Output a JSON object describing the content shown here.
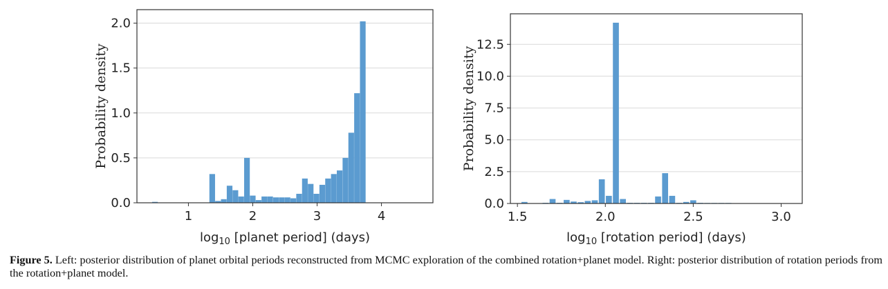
{
  "chart_data": [
    {
      "type": "bar",
      "xlabel_prefix": "log",
      "xlabel_sub": "10",
      "xlabel_rest": " [planet period] (days)",
      "ylabel": "Probability density",
      "xlim": [
        0.2,
        4.8
      ],
      "ylim": [
        0,
        2.15
      ],
      "xticks": [
        1,
        2,
        3,
        4
      ],
      "yticks": [
        0.0,
        0.5,
        1.0,
        1.5,
        2.0
      ],
      "ytick_labels": [
        "0.0",
        "0.5",
        "1.0",
        "1.5",
        "2.0"
      ],
      "xtick_labels": [
        "1",
        "2",
        "3",
        "4"
      ],
      "bar_width": 0.088,
      "grid": "horizontal",
      "color": "#5b9bd0",
      "x": [
        0.48,
        1.28,
        1.37,
        1.46,
        1.55,
        1.64,
        1.73,
        1.82,
        1.91,
        2.0,
        2.09,
        2.18,
        2.27,
        2.36,
        2.45,
        2.54,
        2.63,
        2.72,
        2.81,
        2.9,
        2.99,
        3.08,
        3.17,
        3.26,
        3.35,
        3.44,
        3.53,
        3.62,
        3.71,
        3.8,
        3.89,
        3.98,
        4.07,
        4.16,
        4.25,
        4.34,
        4.43,
        4.52
      ],
      "values": [
        0.01,
        0.0,
        0.32,
        0.02,
        0.04,
        0.19,
        0.14,
        0.07,
        0.5,
        0.08,
        0.03,
        0.07,
        0.07,
        0.06,
        0.06,
        0.06,
        0.05,
        0.1,
        0.27,
        0.21,
        0.1,
        0.2,
        0.27,
        0.32,
        0.36,
        0.5,
        0.78,
        1.22,
        2.02,
        0,
        0,
        0,
        0,
        0,
        0,
        0,
        0,
        0
      ]
    },
    {
      "type": "bar",
      "xlabel_prefix": "log",
      "xlabel_sub": "10",
      "xlabel_rest": " [rotation period] (days)",
      "ylabel": "Probability density",
      "xlim": [
        1.46,
        3.12
      ],
      "ylim": [
        0,
        14.9
      ],
      "xticks": [
        1.5,
        2.0,
        2.5,
        3.0
      ],
      "xtick_labels": [
        "1.5",
        "2.0",
        "2.5",
        "3.0"
      ],
      "yticks": [
        0.0,
        2.5,
        5.0,
        7.5,
        10.0,
        12.5
      ],
      "ytick_labels": [
        "0.0",
        "2.5",
        "5.0",
        "7.5",
        "10.0",
        "12.5"
      ],
      "bar_width": 0.034,
      "grid": "horizontal",
      "color": "#5b9bd0",
      "x": [
        1.54,
        1.66,
        1.7,
        1.74,
        1.78,
        1.82,
        1.86,
        1.9,
        1.94,
        1.98,
        2.02,
        2.06,
        2.1,
        2.14,
        2.18,
        2.22,
        2.26,
        2.3,
        2.34,
        2.38,
        2.42,
        2.46,
        2.5,
        2.54,
        2.58,
        2.62,
        2.66,
        2.7,
        2.74,
        2.78,
        2.82,
        2.86,
        2.9,
        2.94,
        2.98
      ],
      "values": [
        0.12,
        0.05,
        0.35,
        0.05,
        0.28,
        0.15,
        0.1,
        0.2,
        0.25,
        1.9,
        0.6,
        14.2,
        0.35,
        0.05,
        0.05,
        0.05,
        0.05,
        0.55,
        2.38,
        0.6,
        0.05,
        0.12,
        0.25,
        0.05,
        0.04,
        0.04,
        0.04,
        0.04,
        0.02,
        0.02,
        0.02,
        0.02,
        0.02,
        0.02,
        0.02
      ]
    }
  ],
  "caption": {
    "label": "Figure 5.",
    "text": " Left: posterior distribution of planet orbital periods reconstructed from MCMC exploration of the combined rotation+planet model. Right: posterior distribution of rotation periods from the rotation+planet model."
  }
}
